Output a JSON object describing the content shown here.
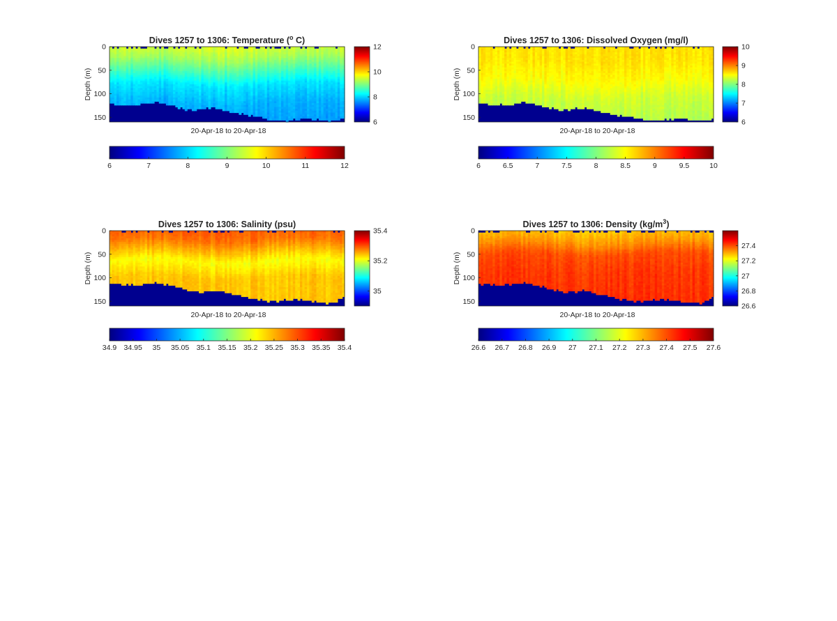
{
  "colormap": "jet",
  "mask_color": "#00008f",
  "chart_data": [
    {
      "type": "heatmap",
      "title": "Dives 1257 to 1306: Temperature (",
      "title_sup": "o",
      "title_end": " C)",
      "xlabel": "20-Apr-18 to 20-Apr-18",
      "ylabel": "Depth (m)",
      "ylim": [
        0,
        160
      ],
      "yticks": [
        0,
        50,
        100,
        150
      ],
      "yticks_reversed": true,
      "clim": [
        6,
        12
      ],
      "side_colorbar_ticks": [
        "6",
        "8",
        "10",
        "12"
      ],
      "bottom_colorbar_ticks": [
        "6",
        "7",
        "8",
        "9",
        "10",
        "11",
        "12"
      ],
      "columns": 100,
      "bottom_depth": [
        120,
        122,
        124,
        121,
        118,
        123,
        130,
        135,
        132,
        128,
        137,
        141,
        146,
        150,
        155,
        157,
        154,
        152,
        156,
        158,
        153
      ],
      "layers": [
        {
          "depth": 0,
          "value": 9.5
        },
        {
          "depth": 25,
          "value": 9.2
        },
        {
          "depth": 55,
          "value": 8.6
        },
        {
          "depth": 80,
          "value": 8.1
        },
        {
          "depth": 120,
          "value": 7.8
        },
        {
          "depth": 160,
          "value": 7.7
        }
      ]
    },
    {
      "type": "heatmap",
      "title": "Dives 1257 to 1306: Dissolved Oxygen (mg/l)",
      "xlabel": "20-Apr-18 to 20-Apr-18",
      "ylabel": "Depth (m)",
      "ylim": [
        0,
        160
      ],
      "yticks": [
        0,
        50,
        100,
        150
      ],
      "yticks_reversed": true,
      "clim": [
        6,
        10
      ],
      "side_colorbar_ticks": [
        "6",
        "7",
        "8",
        "9",
        "10"
      ],
      "bottom_colorbar_ticks": [
        "6",
        "6.5",
        "7",
        "7.5",
        "8",
        "8.5",
        "9",
        "9.5",
        "10"
      ],
      "columns": 100,
      "bottom_depth": [
        120,
        122,
        124,
        121,
        118,
        123,
        130,
        135,
        132,
        128,
        137,
        141,
        146,
        150,
        155,
        157,
        154,
        152,
        156,
        158,
        153
      ],
      "layers": [
        {
          "depth": 0,
          "value": 8.6
        },
        {
          "depth": 30,
          "value": 8.6
        },
        {
          "depth": 70,
          "value": 8.5
        },
        {
          "depth": 110,
          "value": 8.3
        },
        {
          "depth": 160,
          "value": 8.2
        }
      ]
    },
    {
      "type": "heatmap",
      "title": "Dives 1257 to 1306: Salinity (psu)",
      "xlabel": "20-Apr-18 to 20-Apr-18",
      "ylabel": "Depth (m)",
      "ylim": [
        0,
        160
      ],
      "yticks": [
        0,
        50,
        100,
        150
      ],
      "yticks_reversed": true,
      "clim": [
        34.9,
        35.4
      ],
      "side_colorbar_ticks": [
        "35",
        "35.2",
        "35.4"
      ],
      "bottom_colorbar_ticks": [
        "34.9",
        "34.95",
        "35",
        "35.05",
        "35.1",
        "35.15",
        "35.2",
        "35.25",
        "35.3",
        "35.35",
        "35.4"
      ],
      "columns": 100,
      "bottom_depth": [
        112,
        114,
        116,
        113,
        110,
        115,
        122,
        128,
        130,
        126,
        132,
        138,
        144,
        148,
        150,
        147,
        145,
        148,
        152,
        154,
        142
      ],
      "layers": [
        {
          "depth": 0,
          "value": 35.29
        },
        {
          "depth": 20,
          "value": 35.28
        },
        {
          "depth": 40,
          "value": 35.25
        },
        {
          "depth": 65,
          "value": 35.21
        },
        {
          "depth": 100,
          "value": 35.24
        },
        {
          "depth": 160,
          "value": 35.24
        }
      ]
    },
    {
      "type": "heatmap",
      "title": "Dives 1257 to 1306: Density (kg/m",
      "title_sup": "3",
      "title_end": ")",
      "xlabel": "20-Apr-18 to 20-Apr-18",
      "ylabel": "Depth (m)",
      "ylim": [
        0,
        160
      ],
      "yticks": [
        0,
        50,
        100,
        150
      ],
      "yticks_reversed": true,
      "clim": [
        26.6,
        27.6
      ],
      "side_colorbar_ticks": [
        "26.6",
        "26.8",
        "27",
        "27.2",
        "27.4"
      ],
      "bottom_colorbar_ticks": [
        "26.6",
        "26.7",
        "26.8",
        "26.9",
        "27",
        "27.1",
        "27.2",
        "27.3",
        "27.4",
        "27.5",
        "27.6"
      ],
      "columns": 100,
      "bottom_depth": [
        112,
        114,
        116,
        113,
        110,
        115,
        122,
        128,
        130,
        126,
        132,
        138,
        144,
        148,
        150,
        147,
        145,
        148,
        152,
        154,
        142
      ],
      "layers": [
        {
          "depth": 0,
          "value": 27.28
        },
        {
          "depth": 25,
          "value": 27.33
        },
        {
          "depth": 50,
          "value": 27.4
        },
        {
          "depth": 90,
          "value": 27.42
        },
        {
          "depth": 160,
          "value": 27.43
        }
      ]
    }
  ]
}
